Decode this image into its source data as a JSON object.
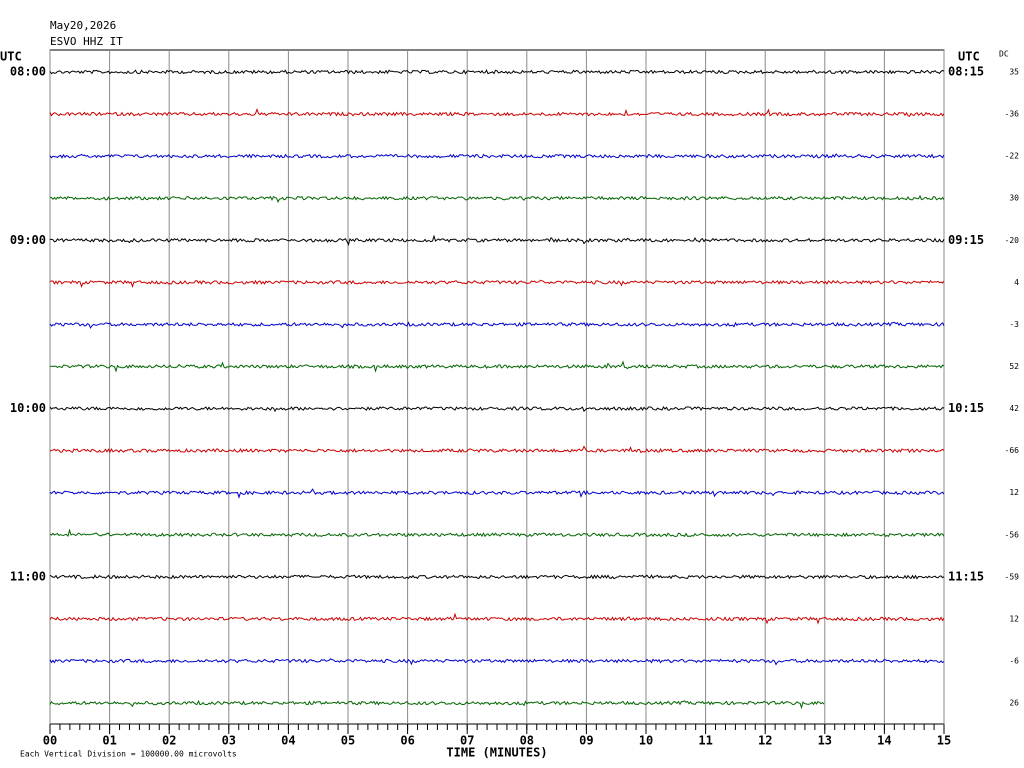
{
  "chart_data": {
    "type": "helicorder",
    "title": "May20,2026",
    "subtitle": "ESVO HHZ IT",
    "left_axis_label": "UTC",
    "right_axis_label": "UTC",
    "dc_label": "DC",
    "x_label": "TIME (MINUTES)",
    "note": "Each Vertical Division = 100000.00 microvolts",
    "xlim": [
      0,
      15
    ],
    "xticks": [
      {
        "value": 0,
        "label": "00"
      },
      {
        "value": 1,
        "label": "01"
      },
      {
        "value": 2,
        "label": "02"
      },
      {
        "value": 3,
        "label": "03"
      },
      {
        "value": 4,
        "label": "04"
      },
      {
        "value": 5,
        "label": "05"
      },
      {
        "value": 6,
        "label": "06"
      },
      {
        "value": 7,
        "label": "07"
      },
      {
        "value": 8,
        "label": "08"
      },
      {
        "value": 9,
        "label": "09"
      },
      {
        "value": 10,
        "label": "10"
      },
      {
        "value": 11,
        "label": "11"
      },
      {
        "value": 12,
        "label": "12"
      },
      {
        "value": 13,
        "label": "13"
      },
      {
        "value": 14,
        "label": "14"
      },
      {
        "value": 15,
        "label": "15"
      }
    ],
    "row_colors": [
      "#000000",
      "#cc0000",
      "#0000cc",
      "#006600"
    ],
    "rows": [
      {
        "left": "08:00",
        "right": "08:15",
        "dc": 35,
        "end": 15
      },
      {
        "left": null,
        "right": null,
        "dc": -36,
        "end": 15
      },
      {
        "left": null,
        "right": null,
        "dc": -22,
        "end": 15
      },
      {
        "left": null,
        "right": null,
        "dc": 30,
        "end": 15
      },
      {
        "left": "09:00",
        "right": "09:15",
        "dc": -20,
        "end": 15
      },
      {
        "left": null,
        "right": null,
        "dc": 4,
        "end": 15
      },
      {
        "left": null,
        "right": null,
        "dc": -3,
        "end": 15
      },
      {
        "left": null,
        "right": null,
        "dc": 52,
        "end": 15
      },
      {
        "left": "10:00",
        "right": "10:15",
        "dc": 42,
        "end": 15
      },
      {
        "left": null,
        "right": null,
        "dc": -66,
        "end": 15
      },
      {
        "left": null,
        "right": null,
        "dc": 12,
        "end": 15
      },
      {
        "left": null,
        "right": null,
        "dc": -56,
        "end": 15
      },
      {
        "left": "11:00",
        "right": "11:15",
        "dc": -59,
        "end": 15
      },
      {
        "left": null,
        "right": null,
        "dc": 12,
        "end": 15
      },
      {
        "left": null,
        "right": null,
        "dc": -6,
        "end": 15
      },
      {
        "left": null,
        "right": null,
        "dc": 26,
        "end": 13
      }
    ]
  }
}
